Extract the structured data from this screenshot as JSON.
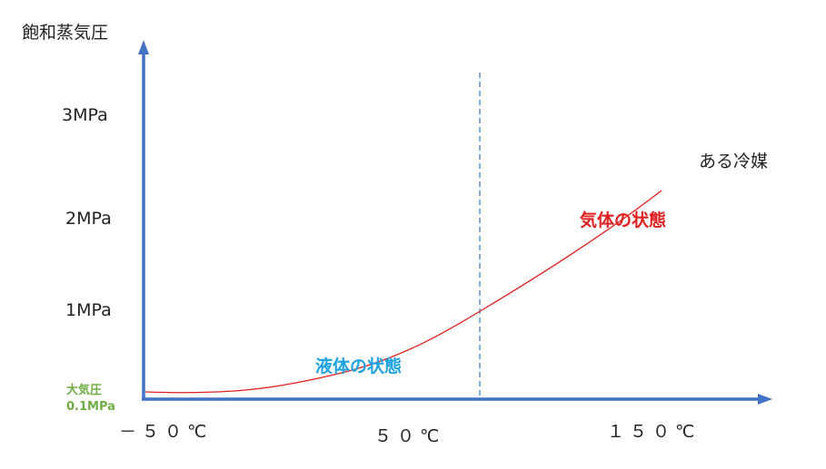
{
  "y_axis_label": "飽和蒸気圧",
  "y_ticks": [
    "3MPa",
    "2MPa",
    "1MPa"
  ],
  "atmospheric_pressure": {
    "label": "大気圧",
    "value": "0.1MPa"
  },
  "x_ticks": [
    "－５０℃",
    "５０℃",
    "１５０℃"
  ],
  "refrigerant_label": "ある冷媒",
  "gas_state_label": "気体の状態",
  "liquid_state_label": "液体の状態",
  "colors": {
    "axis": "#4472c4",
    "curve": "#e02020",
    "divider": "#2e75b6",
    "gas_text": "#e02020",
    "liquid_text": "#1fa3e0",
    "atmospheric_text": "#70ad47"
  }
}
